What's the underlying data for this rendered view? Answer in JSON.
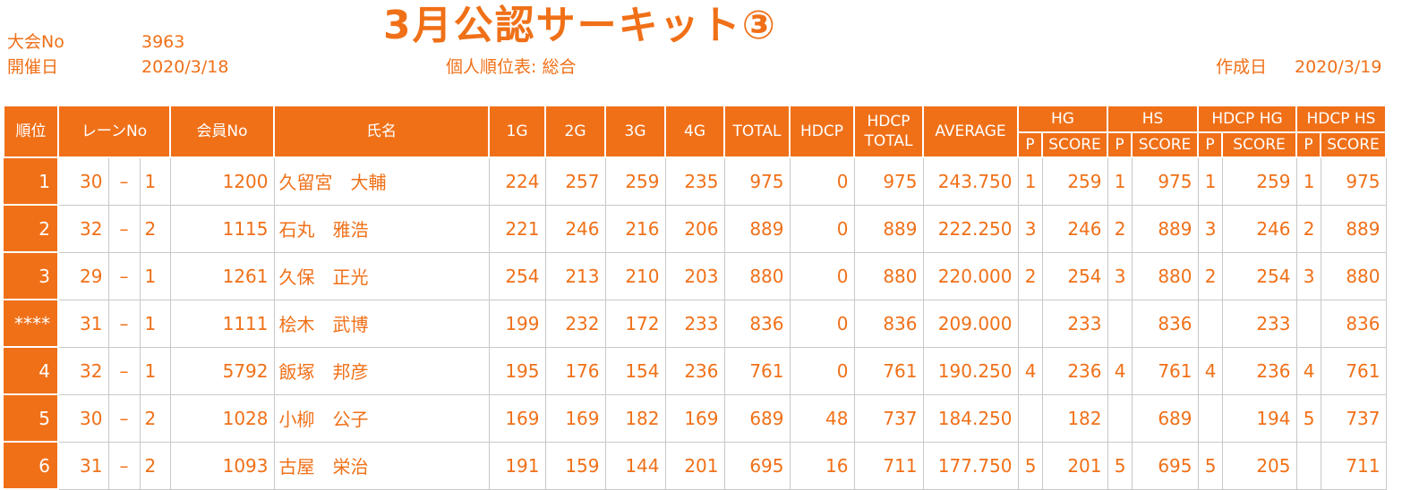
{
  "header": {
    "meet_no_label": "大会No",
    "meet_no": "3963",
    "date_label": "開催日",
    "date": "2020/3/18",
    "title": "3月公認サーキット③",
    "subtitle": "個人順位表: 総合",
    "created_label": "作成日",
    "created_date": "2020/3/19"
  },
  "columns": {
    "rank": "順位",
    "lane": "レーンNo",
    "member": "会員No",
    "name": "氏名",
    "g1": "1G",
    "g2": "2G",
    "g3": "3G",
    "g4": "4G",
    "total": "TOTAL",
    "hdcp": "HDCP",
    "hdcp_total": "HDCP TOTAL",
    "average": "AVERAGE",
    "hg": "HG",
    "hs": "HS",
    "hdcp_hg": "HDCP HG",
    "hdcp_hs": "HDCP HS",
    "p": "P",
    "score": "SCORE"
  },
  "rows": [
    {
      "rank": "1",
      "lane": "30",
      "sep": "–",
      "lane_sub": "1",
      "member": "1200",
      "name": "久留宮　大輔",
      "g1": "224",
      "g2": "257",
      "g3": "259",
      "g4": "235",
      "total": "975",
      "hdcp": "0",
      "hdcp_total": "975",
      "average": "243.750",
      "hg_p": "1",
      "hg_score": "259",
      "hs_p": "1",
      "hs_score": "975",
      "hhg_p": "1",
      "hhg_score": "259",
      "hhs_p": "1",
      "hhs_score": "975"
    },
    {
      "rank": "2",
      "lane": "32",
      "sep": "–",
      "lane_sub": "2",
      "member": "1115",
      "name": "石丸　雅浩",
      "g1": "221",
      "g2": "246",
      "g3": "216",
      "g4": "206",
      "total": "889",
      "hdcp": "0",
      "hdcp_total": "889",
      "average": "222.250",
      "hg_p": "3",
      "hg_score": "246",
      "hs_p": "2",
      "hs_score": "889",
      "hhg_p": "3",
      "hhg_score": "246",
      "hhs_p": "2",
      "hhs_score": "889"
    },
    {
      "rank": "3",
      "lane": "29",
      "sep": "–",
      "lane_sub": "1",
      "member": "1261",
      "name": "久保　正光",
      "g1": "254",
      "g2": "213",
      "g3": "210",
      "g4": "203",
      "total": "880",
      "hdcp": "0",
      "hdcp_total": "880",
      "average": "220.000",
      "hg_p": "2",
      "hg_score": "254",
      "hs_p": "3",
      "hs_score": "880",
      "hhg_p": "2",
      "hhg_score": "254",
      "hhs_p": "3",
      "hhs_score": "880"
    },
    {
      "rank": "****",
      "lane": "31",
      "sep": "–",
      "lane_sub": "1",
      "member": "1111",
      "name": "桧木　武博",
      "g1": "199",
      "g2": "232",
      "g3": "172",
      "g4": "233",
      "total": "836",
      "hdcp": "0",
      "hdcp_total": "836",
      "average": "209.000",
      "hg_p": "",
      "hg_score": "233",
      "hs_p": "",
      "hs_score": "836",
      "hhg_p": "",
      "hhg_score": "233",
      "hhs_p": "",
      "hhs_score": "836"
    },
    {
      "rank": "4",
      "lane": "32",
      "sep": "–",
      "lane_sub": "1",
      "member": "5792",
      "name": "飯塚　邦彦",
      "g1": "195",
      "g2": "176",
      "g3": "154",
      "g4": "236",
      "total": "761",
      "hdcp": "0",
      "hdcp_total": "761",
      "average": "190.250",
      "hg_p": "4",
      "hg_score": "236",
      "hs_p": "4",
      "hs_score": "761",
      "hhg_p": "4",
      "hhg_score": "236",
      "hhs_p": "4",
      "hhs_score": "761"
    },
    {
      "rank": "5",
      "lane": "30",
      "sep": "–",
      "lane_sub": "2",
      "member": "1028",
      "name": "小柳　公子",
      "g1": "169",
      "g2": "169",
      "g3": "182",
      "g4": "169",
      "total": "689",
      "hdcp": "48",
      "hdcp_total": "737",
      "average": "184.250",
      "hg_p": "",
      "hg_score": "182",
      "hs_p": "",
      "hs_score": "689",
      "hhg_p": "",
      "hhg_score": "194",
      "hhs_p": "5",
      "hhs_score": "737"
    },
    {
      "rank": "6",
      "lane": "31",
      "sep": "–",
      "lane_sub": "2",
      "member": "1093",
      "name": "古屋　栄治",
      "g1": "191",
      "g2": "159",
      "g3": "144",
      "g4": "201",
      "total": "695",
      "hdcp": "16",
      "hdcp_total": "711",
      "average": "177.750",
      "hg_p": "5",
      "hg_score": "201",
      "hs_p": "5",
      "hs_score": "695",
      "hhg_p": "5",
      "hhg_score": "205",
      "hhs_p": "",
      "hhs_score": "711"
    }
  ]
}
